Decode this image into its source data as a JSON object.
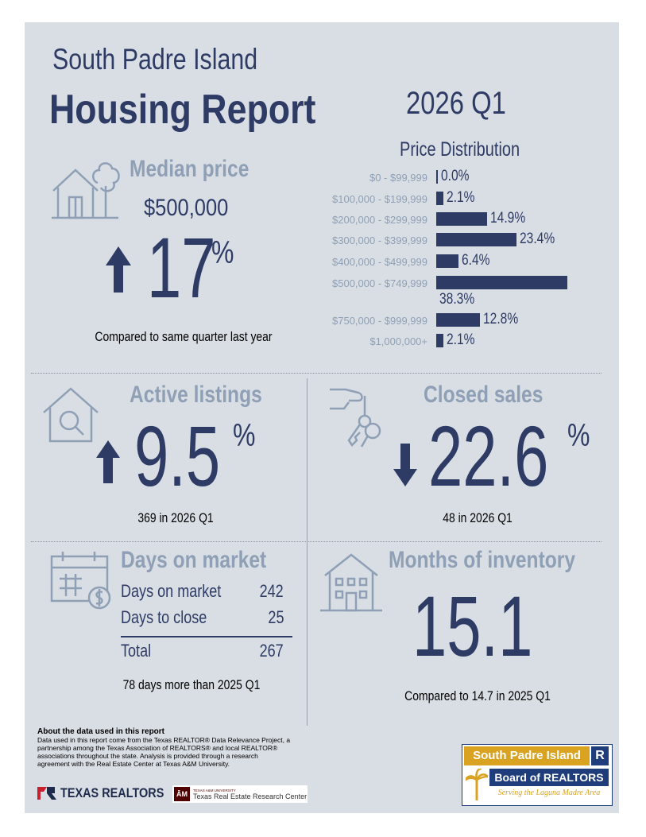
{
  "header": {
    "location": "South Padre Island",
    "title": "Housing Report",
    "quarter": "2026 Q1"
  },
  "median_price": {
    "title": "Median price",
    "value": "$500,000",
    "change_number": "17",
    "percent_sign": "%",
    "direction": "up",
    "caption": "Compared to same quarter last year"
  },
  "price_distribution": {
    "title": "Price Distribution",
    "rows": [
      {
        "range": "$0 - $99,999",
        "value": "0.0%",
        "share": 0.0
      },
      {
        "range": "$100,000 - $199,999",
        "value": "2.1%",
        "share": 2.1
      },
      {
        "range": "$200,000 - $299,999",
        "value": "14.9%",
        "share": 14.9
      },
      {
        "range": "$300,000 - $399,999",
        "value": "23.4%",
        "share": 23.4
      },
      {
        "range": "$400,000 - $499,999",
        "value": "6.4%",
        "share": 6.4
      },
      {
        "range": "$500,000 - $749,999",
        "value": "38.3%",
        "share": 38.3
      },
      {
        "range": "$750,000 - $999,999",
        "value": "12.8%",
        "share": 12.8
      },
      {
        "range": "$1,000,000+",
        "value": "2.1%",
        "share": 2.1
      }
    ]
  },
  "active_listings": {
    "title": "Active listings",
    "change_number": "9.5",
    "percent_sign": "%",
    "direction": "up",
    "caption": "369 in 2026 Q1"
  },
  "closed_sales": {
    "title": "Closed sales",
    "change_number": "22.6",
    "percent_sign": "%",
    "direction": "down",
    "caption": "48 in 2026 Q1"
  },
  "days_on_market": {
    "title": "Days on market",
    "rows": [
      {
        "label": "Days on market",
        "value": "242"
      },
      {
        "label": "Days to close",
        "value": "25"
      }
    ],
    "total_label": "Total",
    "total_value": "267",
    "caption": "78 days more than 2025 Q1"
  },
  "months_inventory": {
    "title": "Months of inventory",
    "value": "15.1",
    "caption": "Compared to 14.7 in 2025 Q1"
  },
  "about": {
    "title": "About the data used in this report",
    "text": "Data used in this report come from the Texas REALTOR® Data Relevance Project, a partnership among the Texas Association of REALTORS® and local REALTOR® associations throughout the state. Analysis is provided through a research agreement with the Real Estate Center at Texas A&M University."
  },
  "logos": {
    "texas_realtors": "TEXAS REALTORS",
    "tamu_small": "TEXAS A&M UNIVERSITY",
    "tamu_center": "Texas Real Estate Research Center",
    "board_line1": "South Padre Island",
    "board_line2": "Board of REALTORS",
    "board_tagline": "Serving the Laguna Madre Area"
  },
  "colors": {
    "navy": "#2e3b65",
    "steel": "#8fa0b6",
    "panel": "#d9dee4"
  }
}
